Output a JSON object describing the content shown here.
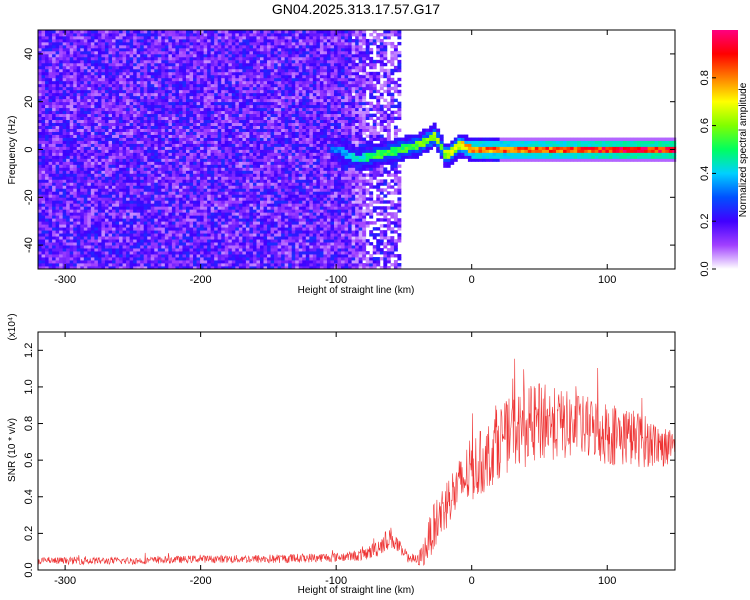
{
  "figure": {
    "title": "GN04.2025.313.17.57.G17"
  },
  "chart_data": [
    {
      "type": "heatmap",
      "xlabel": "Height of straight line (km)",
      "ylabel": "Frequency (Hz)",
      "xlim": [
        -320,
        150
      ],
      "ylim": [
        -50,
        50
      ],
      "xticks": [
        -300,
        -200,
        -100,
        0,
        100
      ],
      "yticks": [
        -40,
        -20,
        0,
        20,
        40
      ],
      "colorbar": {
        "label": "Normalized spectral amplitude",
        "range": [
          0,
          1
        ],
        "ticks": [
          0.0,
          0.2,
          0.4,
          0.6,
          0.8
        ],
        "colors": [
          "#ffffff",
          "#a040ff",
          "#4000ff",
          "#0050ff",
          "#00d0ff",
          "#00ff60",
          "#80ff00",
          "#ffff00",
          "#ff8000",
          "#ff0000",
          "#ff0080"
        ]
      },
      "regions": [
        {
          "x_range": [
            -320,
            -55
          ],
          "freq_range": [
            -50,
            50
          ],
          "amplitude": "noise ~0.1-0.25"
        },
        {
          "x_range": [
            -100,
            150
          ],
          "center_freq": 0,
          "amplitude": "0.4-1.0 signal band"
        }
      ],
      "signal_track": [
        {
          "x": -100,
          "freq": 0,
          "amp": 0.35
        },
        {
          "x": -85,
          "freq": -4,
          "amp": 0.45
        },
        {
          "x": -70,
          "freq": -2,
          "amp": 0.55
        },
        {
          "x": -55,
          "freq": 0,
          "amp": 0.55
        },
        {
          "x": -40,
          "freq": 2,
          "amp": 0.6
        },
        {
          "x": -28,
          "freq": 6,
          "amp": 0.65
        },
        {
          "x": -20,
          "freq": -3,
          "amp": 0.65
        },
        {
          "x": -10,
          "freq": 2,
          "amp": 0.7
        },
        {
          "x": 0,
          "freq": 0,
          "amp": 0.85
        },
        {
          "x": 20,
          "freq": 0,
          "amp": 0.85
        },
        {
          "x": 50,
          "freq": 0,
          "amp": 0.88
        },
        {
          "x": 80,
          "freq": 0,
          "amp": 0.9
        },
        {
          "x": 110,
          "freq": 0,
          "amp": 0.95
        },
        {
          "x": 150,
          "freq": 0,
          "amp": 0.95
        }
      ]
    },
    {
      "type": "line",
      "xlabel": "Height of straight line (km)",
      "ylabel": "SNR (10 * v/v)",
      "yscale_label": "(x10⁴)",
      "xlim": [
        -320,
        150
      ],
      "ylim": [
        0,
        1.3
      ],
      "xticks": [
        -300,
        -200,
        -100,
        0,
        100
      ],
      "yticks": [
        0.0,
        0.2,
        0.4,
        0.6,
        0.8,
        1.0,
        1.2
      ],
      "series": [
        {
          "color": "#ee3333",
          "x": [
            -320,
            -250,
            -200,
            -150,
            -100,
            -80,
            -70,
            -60,
            -55,
            -50,
            -40,
            -35,
            -30,
            -20,
            -10,
            0,
            10,
            20,
            30,
            40,
            50,
            60,
            80,
            100,
            120,
            140,
            150
          ],
          "y": [
            0.05,
            0.05,
            0.06,
            0.06,
            0.07,
            0.08,
            0.12,
            0.18,
            0.14,
            0.08,
            0.05,
            0.1,
            0.2,
            0.35,
            0.45,
            0.55,
            0.6,
            0.7,
            0.75,
            0.78,
            0.8,
            0.8,
            0.78,
            0.75,
            0.72,
            0.68,
            0.65
          ],
          "spread": [
            0.02,
            0.02,
            0.02,
            0.025,
            0.025,
            0.03,
            0.05,
            0.06,
            0.05,
            0.03,
            0.03,
            0.08,
            0.12,
            0.15,
            0.15,
            0.18,
            0.18,
            0.2,
            0.2,
            0.22,
            0.22,
            0.2,
            0.18,
            0.18,
            0.16,
            0.12,
            0.1
          ]
        }
      ]
    }
  ]
}
